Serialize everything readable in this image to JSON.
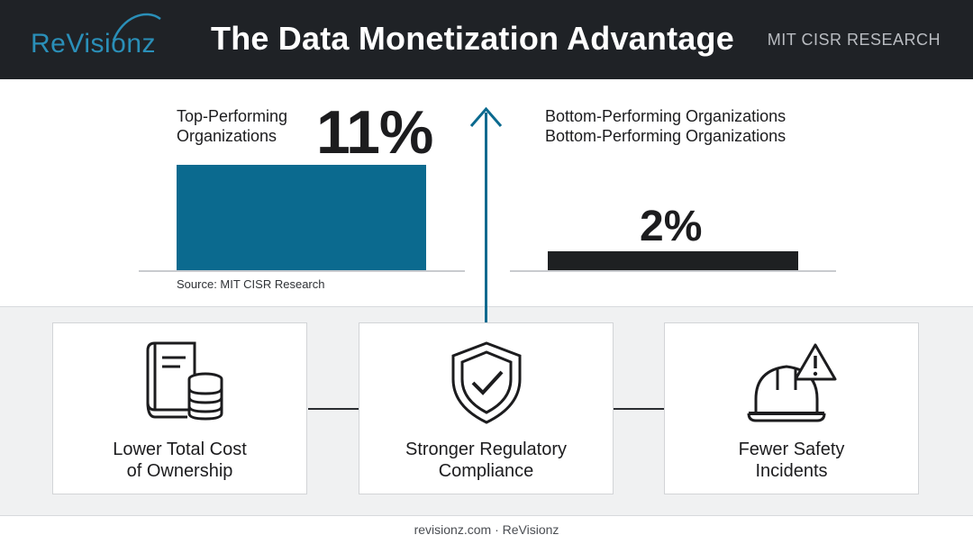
{
  "header": {
    "logo_text": "ReVisionz",
    "title": "The Data Monetization Advantage",
    "source_tag": "MIT CISR RESEARCH"
  },
  "comparison": {
    "top": {
      "label_line1": "Top-Performing",
      "label_line2": "Organizations",
      "value": "11%",
      "value_num": 11,
      "color": "#0b6a8f"
    },
    "bottom": {
      "label_line1": "Bottom-Performing Organizations",
      "label_line2": "Bottom-Performing Organizations",
      "value": "2%",
      "value_num": 2,
      "color": "#1e2022"
    },
    "source": "Source: MIT CISR Research"
  },
  "cards": [
    {
      "icon": "book-coins-icon",
      "line1": "Lower Total Cost",
      "line2": "of Ownership"
    },
    {
      "icon": "shield-check-icon",
      "line1": "Stronger Regulatory",
      "line2": "Compliance"
    },
    {
      "icon": "hardhat-warning-icon",
      "line1": "Fewer Safety",
      "line2": "Incidents"
    }
  ],
  "footer": {
    "text": "revisionz.com · ReVisionz"
  }
}
